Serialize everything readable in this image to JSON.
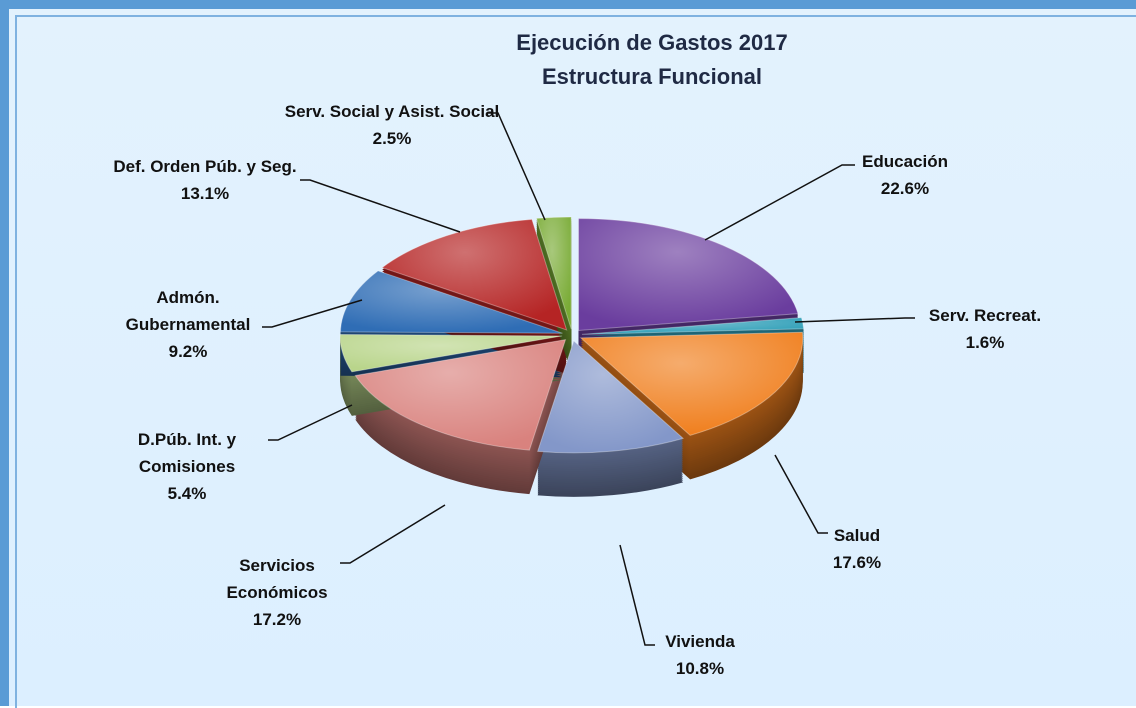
{
  "chart_data": {
    "type": "pie",
    "title": "Ejecución de Gastos 2017",
    "subtitle": "Estructura Funcional",
    "categories": [
      "Educación",
      "Serv. Recreat.",
      "Salud",
      "Vivienda",
      "Servicios Económicos",
      "D.Púb. Int. y Comisiones",
      "Admón. Gubernamental",
      "Def. Orden Púb. y Seg.",
      "Serv. Social y Asist. Social"
    ],
    "values": [
      22.6,
      1.6,
      17.6,
      10.8,
      17.2,
      5.4,
      9.2,
      13.1,
      2.5
    ],
    "value_labels": [
      "22.6%",
      "1.6%",
      "17.6%",
      "10.8%",
      "17.2%",
      "5.4%",
      "9.2%",
      "13.1%",
      "2.5%"
    ],
    "colors": [
      "#6a3d9e",
      "#2f9fb8",
      "#f07f1e",
      "#8397c9",
      "#d9827e",
      "#b9d58b",
      "#2f6db5",
      "#b52424",
      "#79ab35"
    ]
  }
}
